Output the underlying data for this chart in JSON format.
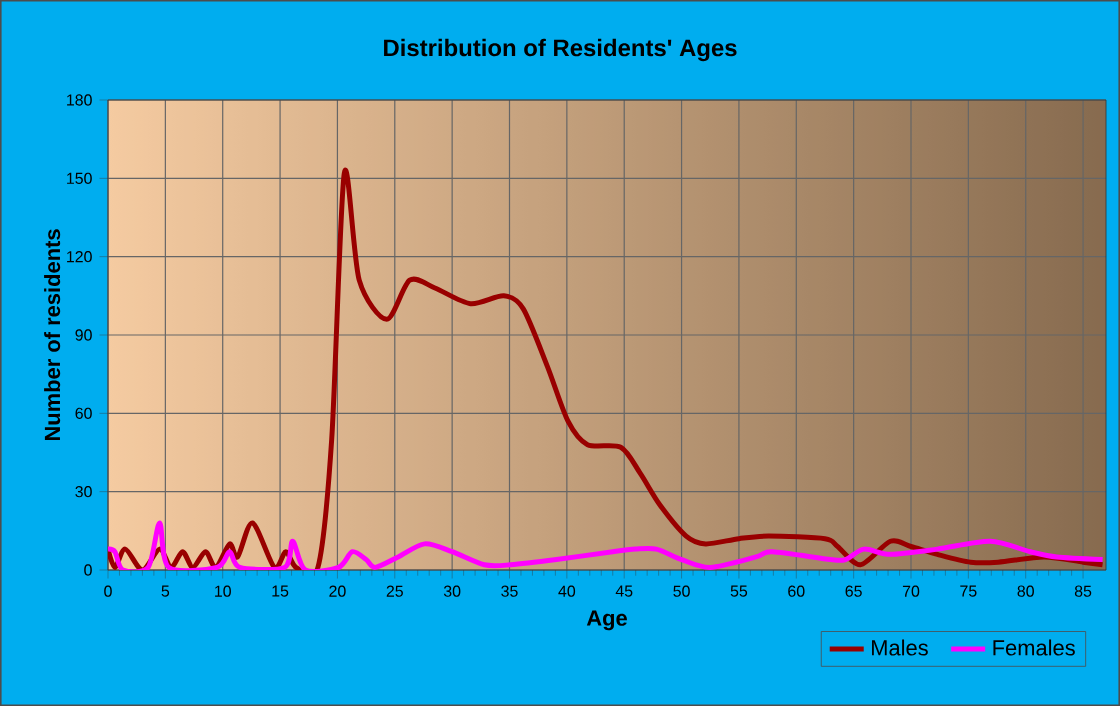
{
  "chart_data": {
    "type": "line",
    "title": "Distribution of Residents' Ages",
    "xlabel": "Age",
    "ylabel": "Number of residents",
    "xlim": [
      0,
      87
    ],
    "xticks": [
      0,
      5,
      10,
      15,
      20,
      25,
      30,
      35,
      40,
      45,
      50,
      55,
      60,
      65,
      70,
      75,
      80,
      85
    ],
    "ylim": [
      0,
      180
    ],
    "yticks": [
      0,
      30,
      60,
      90,
      120,
      150,
      180
    ],
    "grid": true,
    "legend": "bottom right",
    "marker": "none",
    "line_style": "solid",
    "series": [
      {
        "name": "Males",
        "color": "#990000",
        "x": [
          0,
          0.6,
          1.5,
          3,
          4.5,
          5.5,
          6.5,
          7.4,
          8.5,
          9.4,
          10.6,
          11.3,
          12.6,
          14.5,
          15.5,
          16.4,
          18.3,
          19.5,
          20.6,
          21.9,
          24.3,
          26.3,
          28.5,
          31.6,
          34.5,
          36.2,
          38.3,
          40.1,
          41.8,
          44.7,
          46.4,
          48.1,
          50.4,
          52.1,
          55,
          57.6,
          62.5,
          63.6,
          65.6,
          68.2,
          70,
          72.3,
          75.2,
          77.6,
          81.6,
          85,
          86.7
        ],
        "values": [
          8,
          1,
          8,
          0,
          8,
          1,
          7,
          1,
          7,
          1,
          10,
          5,
          18,
          1,
          7,
          1,
          1,
          50,
          152,
          111,
          96,
          111,
          108,
          102,
          105,
          100,
          78,
          57,
          48,
          47,
          37,
          25,
          13,
          10,
          12,
          13,
          12,
          9,
          2,
          11,
          9,
          6,
          3,
          3,
          5,
          3,
          2
        ]
      },
      {
        "name": "Females",
        "color": "#ff00ff",
        "x": [
          0,
          0.6,
          1.3,
          3.5,
          4.5,
          5.3,
          9.5,
          10.6,
          11.5,
          15.4,
          16.1,
          17.2,
          20.1,
          21.3,
          22.5,
          23.3,
          25.3,
          27.6,
          30,
          32.8,
          35.1,
          39.1,
          44,
          46,
          47.8,
          50,
          52.5,
          56.5,
          57.9,
          63,
          64.3,
          65.9,
          68.2,
          72.3,
          76.9,
          80.4,
          82.7,
          86.7
        ],
        "values": [
          8,
          7,
          0,
          1,
          18,
          1,
          1,
          7,
          1,
          1,
          11,
          0,
          1,
          7,
          4,
          1,
          5,
          10,
          7,
          2,
          2,
          4,
          7,
          8,
          8,
          4,
          1,
          5,
          7,
          4,
          4,
          8,
          6,
          8,
          11,
          7,
          5,
          4
        ]
      }
    ]
  }
}
